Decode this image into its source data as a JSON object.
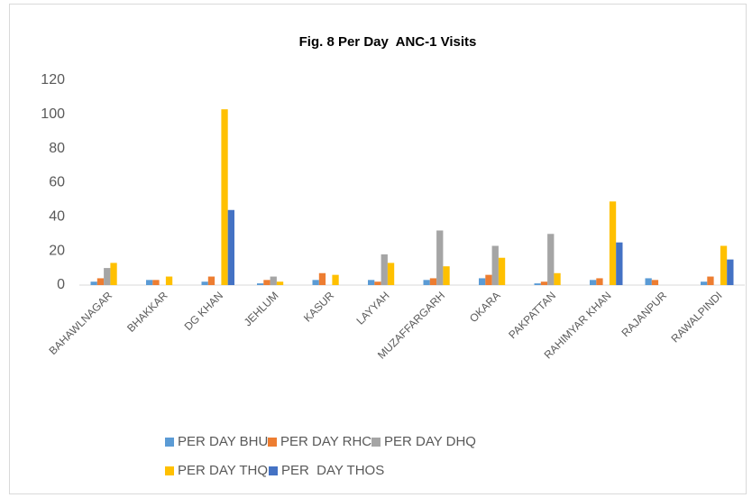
{
  "chart_data": {
    "type": "bar",
    "title": "Fig. 8 Per Day  ANC-1 Visits",
    "categories": [
      "BAHAWLNAGAR",
      "BHAKKAR",
      "DG KHAN",
      "JEHLUM",
      "KASUR",
      "LAYYAH",
      "MUZAFFARGARH",
      "OKARA",
      "PAKPATTAN",
      "RAHIMYAR KHAN",
      "RAJANPUR",
      "RAWALPINDI"
    ],
    "series": [
      {
        "name": "PER DAY BHU",
        "color": "#5b9bd5",
        "values": [
          2,
          3,
          2,
          1,
          3,
          3,
          3,
          4,
          1,
          3,
          4,
          2
        ]
      },
      {
        "name": "PER DAY RHC",
        "color": "#ed7d31",
        "values": [
          4,
          3,
          5,
          3,
          7,
          2,
          4,
          6,
          2,
          4,
          3,
          5
        ]
      },
      {
        "name": "PER DAY DHQ",
        "color": "#a5a5a5",
        "values": [
          10,
          0,
          0,
          5,
          0,
          18,
          32,
          23,
          30,
          0,
          0,
          0
        ]
      },
      {
        "name": "PER DAY THQ",
        "color": "#ffc000",
        "values": [
          13,
          5,
          103,
          2,
          6,
          13,
          11,
          16,
          7,
          49,
          0,
          23
        ]
      },
      {
        "name": "PER  DAY THOS",
        "color": "#4472c4",
        "values": [
          0,
          0,
          44,
          0,
          0,
          0,
          0,
          0,
          0,
          25,
          0,
          15
        ]
      }
    ],
    "ylim": [
      0,
      120
    ],
    "yticks": [
      0,
      20,
      40,
      60,
      80,
      100,
      120
    ],
    "grid": false,
    "legend": "bottom"
  }
}
